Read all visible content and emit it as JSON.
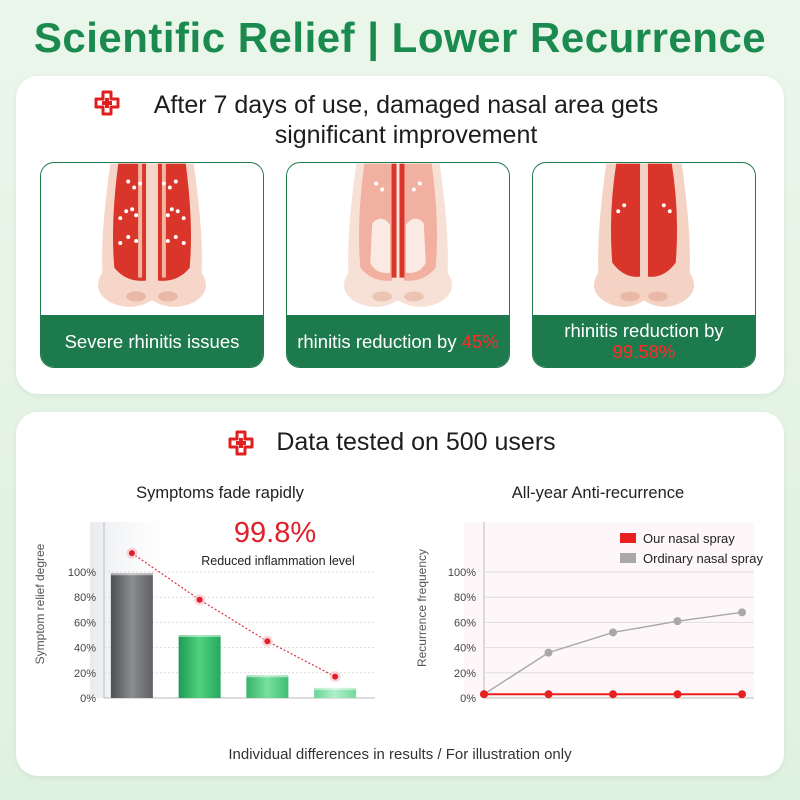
{
  "title": "Scientific Relief | Lower Recurrence",
  "top_panel": {
    "heading": "After 7 days of use, damaged nasal area gets significant improvement",
    "cards": [
      {
        "label": "Severe rhinitis issues",
        "highlight": ""
      },
      {
        "label": "rhinitis reduction by ",
        "highlight": "45%"
      },
      {
        "label": "rhinitis reduction by ",
        "highlight": "99.58%"
      }
    ]
  },
  "bottom_panel": {
    "heading": "Data tested on 500 users",
    "footer": "Individual differences in results / For illustration only"
  },
  "colors": {
    "brand_green": "#1a8a4e",
    "band_green": "#1d7a4d",
    "highlight_red": "#ff2b2b"
  },
  "chart_data": [
    {
      "type": "bar",
      "title": "Symptoms fade rapidly",
      "ylabel": "Symptom relief degree",
      "yticks": [
        "0%",
        "20%",
        "40%",
        "60%",
        "80%",
        "100%"
      ],
      "ylim": [
        0,
        100
      ],
      "values": [
        99,
        50,
        18,
        8
      ],
      "trend_points": [
        115,
        78,
        45,
        17
      ],
      "annotation_value": "99.8%",
      "annotation_text": "Reduced inflammation level"
    },
    {
      "type": "line",
      "title": "All-year Anti-recurrence",
      "ylabel": "Recurrence frequency",
      "yticks": [
        "0%",
        "20%",
        "40%",
        "60%",
        "80%",
        "100%"
      ],
      "ylim": [
        0,
        100
      ],
      "series": [
        {
          "name": "Our nasal spray",
          "color": "#e82020",
          "values": [
            3,
            3,
            3,
            3,
            3
          ]
        },
        {
          "name": "Ordinary nasal spray",
          "color": "#a8a8a8",
          "values": [
            3,
            36,
            52,
            61,
            68
          ]
        }
      ]
    }
  ]
}
